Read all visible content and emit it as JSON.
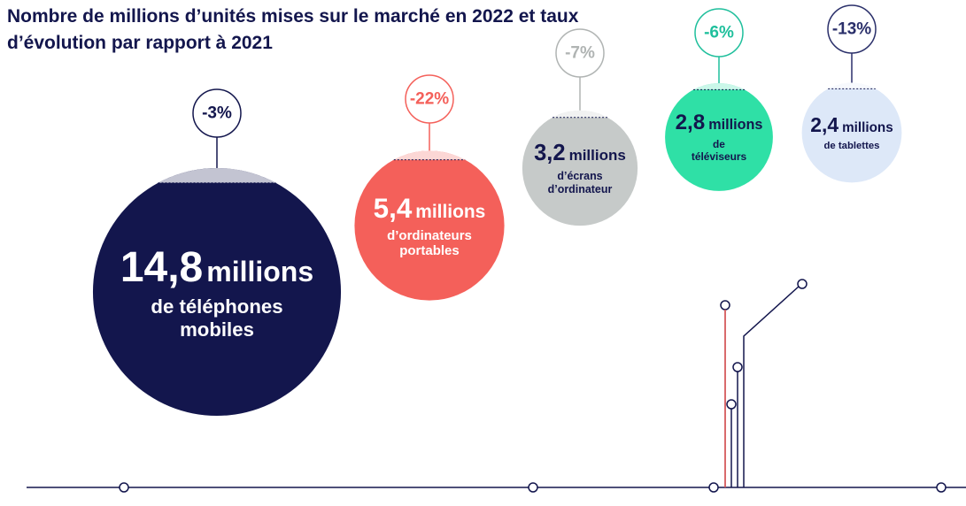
{
  "chart_data": {
    "type": "bubble",
    "title": "Nombre de millions d’unités mises sur le marché en 2022 et taux d’évolution par rapport à 2021",
    "unit": "millions",
    "categories": [
      "de téléphones mobiles",
      "d’ordinateurs portables",
      "d’écrans d’ordinateur",
      "de téléviseurs",
      "de tablettes"
    ],
    "values": [
      14.8,
      5.4,
      3.2,
      2.8,
      2.4
    ],
    "value_labels": [
      "14,8",
      "5,4",
      "3,2",
      "2,8",
      "2,4"
    ],
    "changes": [
      -3,
      -22,
      -7,
      -6,
      -13
    ],
    "change_labels": [
      "-3%",
      "-22%",
      "-7%",
      "-6%",
      "-13%"
    ],
    "colors": [
      "#13164d",
      "#f4605a",
      "#c6cac9",
      "#2fe0a6",
      "#dde8f8"
    ],
    "text_colors": [
      "#ffffff",
      "#ffffff",
      "#13164d",
      "#13164d",
      "#13164d"
    ],
    "change_colors": [
      "#13164d",
      "#f4605a",
      "#b0b4b3",
      "#1fbf9c",
      "#2a2f6a"
    ]
  }
}
